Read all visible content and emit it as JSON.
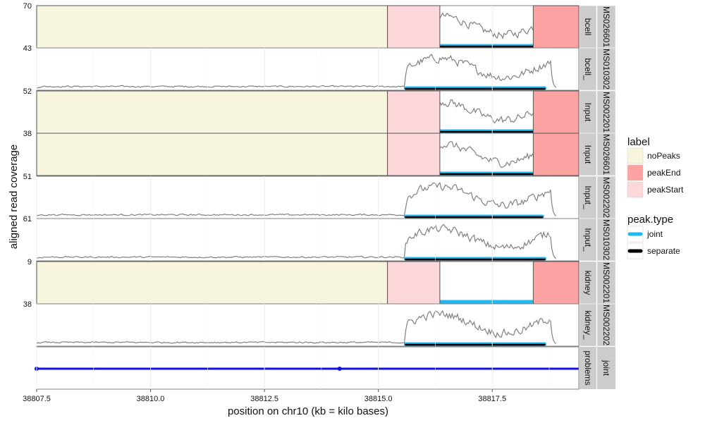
{
  "chart_data": {
    "type": "line",
    "xlabel": "position on chr10 (kb = kilo bases)",
    "ylabel": "aligned read coverage",
    "xlim": [
      38807.5,
      38819.4
    ],
    "x_ticks": [
      38807.5,
      38810.0,
      38812.5,
      38815.0,
      38817.5
    ],
    "x_tick_labels": [
      "38807.5",
      "38810.0",
      "38812.5",
      "38815.0",
      "38817.5"
    ],
    "grid": "on",
    "facets": [
      {
        "strip1": "bcell",
        "strip2": "MS026601",
        "ymax_label": "70",
        "regions": [
          {
            "label": "noPeaks",
            "start": 38807.5,
            "end": 38815.2
          },
          {
            "label": "peakStart",
            "start": 38815.2,
            "end": 38816.35
          },
          {
            "label": "peakEnd",
            "start": 38818.4,
            "end": 38819.4
          }
        ],
        "peaks": [
          {
            "type": "joint",
            "start": 38815.6,
            "end": 38818.6
          },
          {
            "type": "separate",
            "start": 38815.6,
            "end": 38818.6
          }
        ]
      },
      {
        "strip1": "bcell_",
        "strip2": "MS010302",
        "ymax_label": "43",
        "regions": [],
        "peaks": [
          {
            "type": "joint",
            "start": 38815.6,
            "end": 38818.65
          },
          {
            "type": "separate",
            "start": 38815.6,
            "end": 38818.65
          }
        ]
      },
      {
        "strip1": "Input",
        "strip2": "MS002201",
        "ymax_label": "52",
        "regions": [
          {
            "label": "noPeaks",
            "start": 38807.5,
            "end": 38815.2
          },
          {
            "label": "peakStart",
            "start": 38815.2,
            "end": 38816.35
          },
          {
            "label": "peakEnd",
            "start": 38818.4,
            "end": 38819.4
          }
        ],
        "peaks": [
          {
            "type": "joint",
            "start": 38815.6,
            "end": 38818.65
          },
          {
            "type": "separate",
            "start": 38815.6,
            "end": 38818.65
          }
        ]
      },
      {
        "strip1": "Input",
        "strip2": "MS026601",
        "ymax_label": "38",
        "regions": [
          {
            "label": "noPeaks",
            "start": 38807.5,
            "end": 38815.2
          },
          {
            "label": "peakStart",
            "start": 38815.2,
            "end": 38816.35
          },
          {
            "label": "peakEnd",
            "start": 38818.4,
            "end": 38819.4
          }
        ],
        "peaks": [
          {
            "type": "joint",
            "start": 38815.6,
            "end": 38818.65
          },
          {
            "type": "separate",
            "start": 38815.6,
            "end": 38818.65
          }
        ]
      },
      {
        "strip1": "Input_",
        "strip2": "MS002202",
        "ymax_label": "51",
        "regions": [],
        "peaks": [
          {
            "type": "joint",
            "start": 38815.6,
            "end": 38818.6
          },
          {
            "type": "separate",
            "start": 38815.6,
            "end": 38818.6
          }
        ]
      },
      {
        "strip1": "Input_",
        "strip2": "MS010302",
        "ymax_label": "61",
        "regions": [],
        "peaks": [
          {
            "type": "joint",
            "start": 38815.6,
            "end": 38818.65
          },
          {
            "type": "separate",
            "start": 38815.6,
            "end": 38818.65
          }
        ]
      },
      {
        "strip1": "kidney",
        "strip2": "MS002201",
        "ymax_label": "9",
        "regions": [
          {
            "label": "noPeaks",
            "start": 38807.5,
            "end": 38815.2
          },
          {
            "label": "peakStart",
            "start": 38815.2,
            "end": 38816.35
          },
          {
            "label": "peakEnd",
            "start": 38818.4,
            "end": 38819.4
          }
        ],
        "peaks": [
          {
            "type": "joint",
            "start": 38815.5,
            "end": 38818.6
          }
        ]
      },
      {
        "strip1": "kidney_",
        "strip2": "MS002202",
        "ymax_label": "38",
        "regions": [],
        "peaks": [
          {
            "type": "joint",
            "start": 38815.6,
            "end": 38818.65
          },
          {
            "type": "separate",
            "start": 38815.6,
            "end": 38818.65
          }
        ]
      }
    ],
    "problems_panel": {
      "strip1": "problems",
      "strip2": "joint",
      "segment": {
        "start": 38807.5,
        "end": 38819.4
      },
      "point": 38814.15
    },
    "legend": {
      "position": "right",
      "label": {
        "title": "label",
        "entries": [
          {
            "name": "noPeaks",
            "color": "#f7f5dd"
          },
          {
            "name": "peakEnd",
            "color": "#fca2a2"
          },
          {
            "name": "peakStart",
            "color": "#fdd8da"
          }
        ]
      },
      "peak_type": {
        "title": "peak.type",
        "entries": [
          {
            "name": "joint",
            "color": "#1fb8f0"
          },
          {
            "name": "separate",
            "color": "#000000"
          }
        ]
      }
    },
    "colors": {
      "coverage": "#808080",
      "joint": "#1fb8f0",
      "separate": "#000000",
      "problems": "#1010dd",
      "strip": "#cccccc"
    }
  }
}
